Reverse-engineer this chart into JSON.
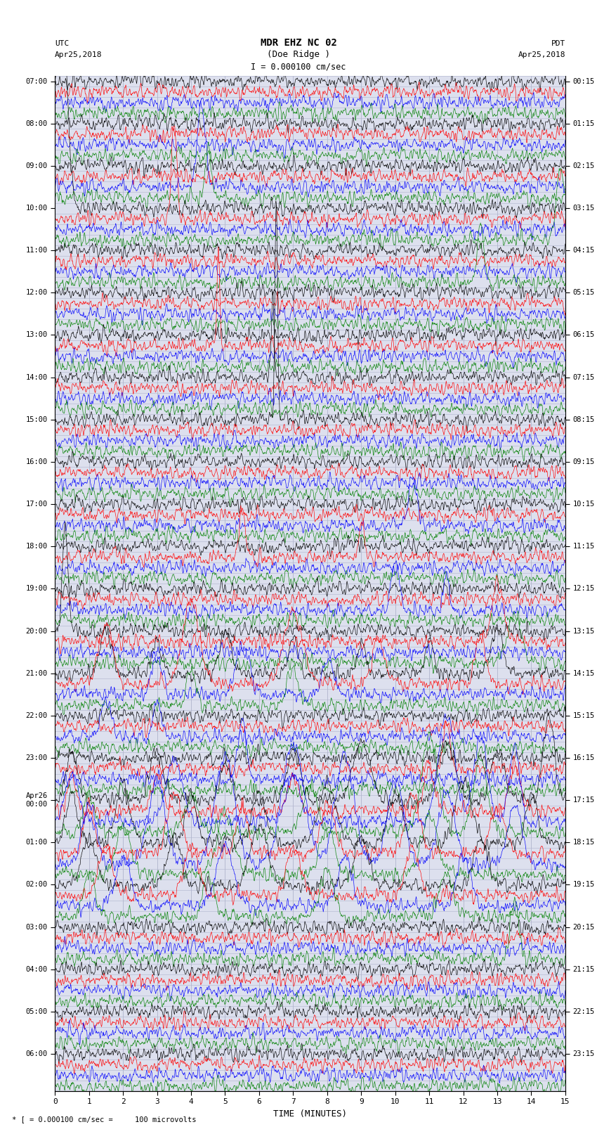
{
  "title_line1": "MDR EHZ NC 02",
  "title_line2": "(Doe Ridge )",
  "title_scale": "I = 0.000100 cm/sec",
  "left_label_line1": "UTC",
  "left_label_line2": "Apr25,2018",
  "right_label_line1": "PDT",
  "right_label_line2": "Apr25,2018",
  "bottom_label": "TIME (MINUTES)",
  "footer_note": "* [ = 0.000100 cm/sec =     100 microvolts",
  "xlabel_ticks": [
    0,
    1,
    2,
    3,
    4,
    5,
    6,
    7,
    8,
    9,
    10,
    11,
    12,
    13,
    14,
    15
  ],
  "utc_times_major": [
    "07:00",
    "08:00",
    "09:00",
    "10:00",
    "11:00",
    "12:00",
    "13:00",
    "14:00",
    "15:00",
    "16:00",
    "17:00",
    "18:00",
    "19:00",
    "20:00",
    "21:00",
    "22:00",
    "23:00",
    "Apr26\n00:00",
    "01:00",
    "02:00",
    "03:00",
    "04:00",
    "05:00",
    "06:00"
  ],
  "pdt_times_major": [
    "00:15",
    "01:15",
    "02:15",
    "03:15",
    "04:15",
    "05:15",
    "06:15",
    "07:15",
    "08:15",
    "09:15",
    "10:15",
    "11:15",
    "12:15",
    "13:15",
    "14:15",
    "15:15",
    "16:15",
    "17:15",
    "18:15",
    "19:15",
    "20:15",
    "21:15",
    "22:15",
    "23:15"
  ],
  "colors_cycle": [
    "black",
    "red",
    "blue",
    "green"
  ],
  "num_rows": 96,
  "rows_per_hour": 4,
  "bg_color": "#ffffff",
  "plot_bg": "#dde0ee",
  "grid_color": "#b0b4cc",
  "trace_amplitude": 0.38,
  "fig_width": 8.5,
  "fig_height": 16.13,
  "dpi": 100,
  "noise_base": 0.055,
  "samples": 1500
}
